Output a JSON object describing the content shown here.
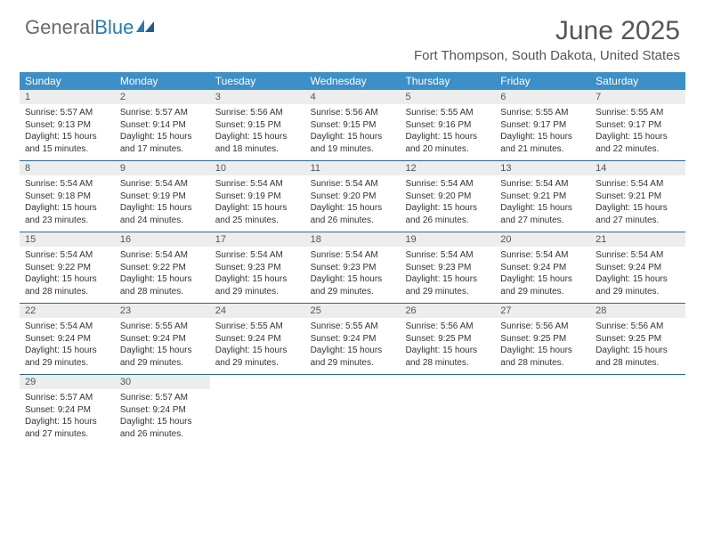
{
  "brand": {
    "word1": "General",
    "word2": "Blue"
  },
  "title": "June 2025",
  "location": "Fort Thompson, South Dakota, United States",
  "colors": {
    "header_bg": "#3d8fc7",
    "row_border": "#2a6a9a",
    "daynum_bg": "#eceded",
    "text": "#333333",
    "title_text": "#555555"
  },
  "daysOfWeek": [
    "Sunday",
    "Monday",
    "Tuesday",
    "Wednesday",
    "Thursday",
    "Friday",
    "Saturday"
  ],
  "days": [
    {
      "n": "1",
      "sunrise": "5:57 AM",
      "sunset": "9:13 PM",
      "daylight": "15 hours and 15 minutes."
    },
    {
      "n": "2",
      "sunrise": "5:57 AM",
      "sunset": "9:14 PM",
      "daylight": "15 hours and 17 minutes."
    },
    {
      "n": "3",
      "sunrise": "5:56 AM",
      "sunset": "9:15 PM",
      "daylight": "15 hours and 18 minutes."
    },
    {
      "n": "4",
      "sunrise": "5:56 AM",
      "sunset": "9:15 PM",
      "daylight": "15 hours and 19 minutes."
    },
    {
      "n": "5",
      "sunrise": "5:55 AM",
      "sunset": "9:16 PM",
      "daylight": "15 hours and 20 minutes."
    },
    {
      "n": "6",
      "sunrise": "5:55 AM",
      "sunset": "9:17 PM",
      "daylight": "15 hours and 21 minutes."
    },
    {
      "n": "7",
      "sunrise": "5:55 AM",
      "sunset": "9:17 PM",
      "daylight": "15 hours and 22 minutes."
    },
    {
      "n": "8",
      "sunrise": "5:54 AM",
      "sunset": "9:18 PM",
      "daylight": "15 hours and 23 minutes."
    },
    {
      "n": "9",
      "sunrise": "5:54 AM",
      "sunset": "9:19 PM",
      "daylight": "15 hours and 24 minutes."
    },
    {
      "n": "10",
      "sunrise": "5:54 AM",
      "sunset": "9:19 PM",
      "daylight": "15 hours and 25 minutes."
    },
    {
      "n": "11",
      "sunrise": "5:54 AM",
      "sunset": "9:20 PM",
      "daylight": "15 hours and 26 minutes."
    },
    {
      "n": "12",
      "sunrise": "5:54 AM",
      "sunset": "9:20 PM",
      "daylight": "15 hours and 26 minutes."
    },
    {
      "n": "13",
      "sunrise": "5:54 AM",
      "sunset": "9:21 PM",
      "daylight": "15 hours and 27 minutes."
    },
    {
      "n": "14",
      "sunrise": "5:54 AM",
      "sunset": "9:21 PM",
      "daylight": "15 hours and 27 minutes."
    },
    {
      "n": "15",
      "sunrise": "5:54 AM",
      "sunset": "9:22 PM",
      "daylight": "15 hours and 28 minutes."
    },
    {
      "n": "16",
      "sunrise": "5:54 AM",
      "sunset": "9:22 PM",
      "daylight": "15 hours and 28 minutes."
    },
    {
      "n": "17",
      "sunrise": "5:54 AM",
      "sunset": "9:23 PM",
      "daylight": "15 hours and 29 minutes."
    },
    {
      "n": "18",
      "sunrise": "5:54 AM",
      "sunset": "9:23 PM",
      "daylight": "15 hours and 29 minutes."
    },
    {
      "n": "19",
      "sunrise": "5:54 AM",
      "sunset": "9:23 PM",
      "daylight": "15 hours and 29 minutes."
    },
    {
      "n": "20",
      "sunrise": "5:54 AM",
      "sunset": "9:24 PM",
      "daylight": "15 hours and 29 minutes."
    },
    {
      "n": "21",
      "sunrise": "5:54 AM",
      "sunset": "9:24 PM",
      "daylight": "15 hours and 29 minutes."
    },
    {
      "n": "22",
      "sunrise": "5:54 AM",
      "sunset": "9:24 PM",
      "daylight": "15 hours and 29 minutes."
    },
    {
      "n": "23",
      "sunrise": "5:55 AM",
      "sunset": "9:24 PM",
      "daylight": "15 hours and 29 minutes."
    },
    {
      "n": "24",
      "sunrise": "5:55 AM",
      "sunset": "9:24 PM",
      "daylight": "15 hours and 29 minutes."
    },
    {
      "n": "25",
      "sunrise": "5:55 AM",
      "sunset": "9:24 PM",
      "daylight": "15 hours and 29 minutes."
    },
    {
      "n": "26",
      "sunrise": "5:56 AM",
      "sunset": "9:25 PM",
      "daylight": "15 hours and 28 minutes."
    },
    {
      "n": "27",
      "sunrise": "5:56 AM",
      "sunset": "9:25 PM",
      "daylight": "15 hours and 28 minutes."
    },
    {
      "n": "28",
      "sunrise": "5:56 AM",
      "sunset": "9:25 PM",
      "daylight": "15 hours and 28 minutes."
    },
    {
      "n": "29",
      "sunrise": "5:57 AM",
      "sunset": "9:24 PM",
      "daylight": "15 hours and 27 minutes."
    },
    {
      "n": "30",
      "sunrise": "5:57 AM",
      "sunset": "9:24 PM",
      "daylight": "15 hours and 26 minutes."
    }
  ],
  "labels": {
    "sunrise": "Sunrise: ",
    "sunset": "Sunset: ",
    "daylight": "Daylight: "
  },
  "layout": {
    "startOffset": 0,
    "totalCells": 35
  }
}
